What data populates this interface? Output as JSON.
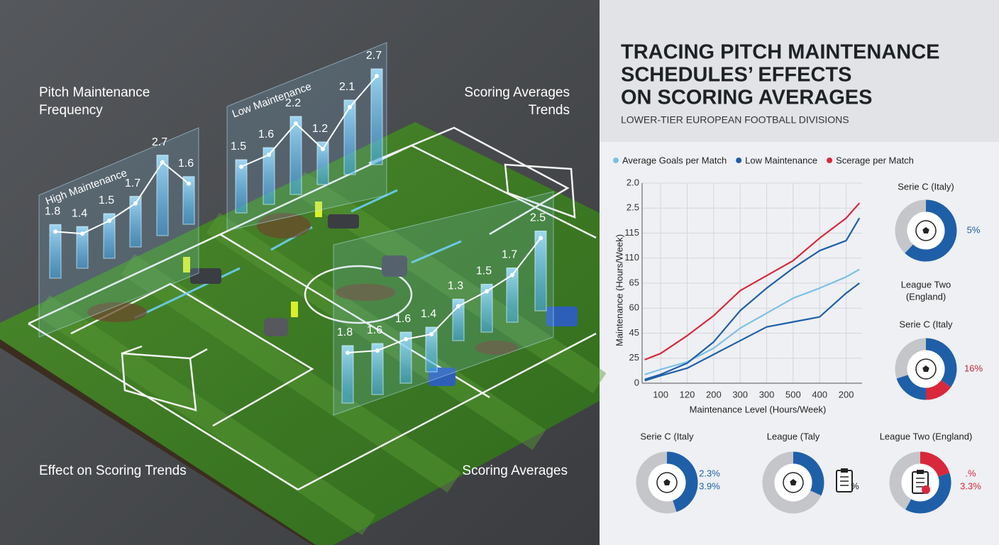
{
  "header": {
    "title": [
      "TRACING PITCH MAINTENANCE",
      "SCHEDULES’ EFFECTS",
      "ON SCORING AVERAGES"
    ],
    "subtitle": "LOWER-TIER EUROPEAN FOOTBALL DIVISIONS"
  },
  "illustration": {
    "labels": [
      [
        "Pitch Maintenance",
        "Frequency"
      ],
      [
        "Scoring Averages",
        "Trends"
      ],
      [
        "Effect on Scoring Trends"
      ],
      [
        "Scoring Averages"
      ]
    ]
  },
  "side_labels": [
    [
      "League Two",
      "(England)"
    ]
  ],
  "chart_data": [
    {
      "type": "line",
      "xlabel": "Maintenance Level (Hours/Week)",
      "ylabel": "Maintenance (Hours/Week)",
      "x": [
        0.4,
        1,
        2,
        3,
        4,
        5,
        6,
        7,
        8,
        8.5
      ],
      "xlim": [
        0.3,
        8.6
      ],
      "xticks": [
        {
          "value": 1,
          "label": "100"
        },
        {
          "value": 2,
          "label": "120"
        },
        {
          "value": 3,
          "label": "200"
        },
        {
          "value": 4,
          "label": "300"
        },
        {
          "value": 5,
          "label": "300"
        },
        {
          "value": 6,
          "label": "500"
        },
        {
          "value": 7,
          "label": "400"
        },
        {
          "value": 8,
          "label": "200"
        }
      ],
      "ylim": [
        0,
        8
      ],
      "yticks": [
        0,
        {
          "value": 1,
          "label": "25"
        },
        {
          "value": 2,
          "label": "45"
        },
        {
          "value": 3,
          "label": "60"
        },
        {
          "value": 4,
          "label": "65"
        },
        {
          "value": 5,
          "label": "110"
        },
        {
          "value": 6,
          "label": "115"
        },
        {
          "value": 7,
          "label": "2.5"
        },
        {
          "value": 8,
          "label": "2.0"
        }
      ],
      "grid": true,
      "series": [
        {
          "name": "Average Goals per Match",
          "color": "#7cc0e6",
          "values": [
            0.35,
            0.55,
            0.85,
            1.4,
            2.2,
            2.8,
            3.4,
            3.8,
            4.25,
            4.55
          ]
        },
        {
          "name": "Low Maintenance",
          "color": "#1f5fa8",
          "values": [
            0.15,
            0.35,
            0.8,
            1.65,
            2.9,
            3.8,
            4.6,
            5.3,
            5.7,
            6.6
          ]
        },
        {
          "name": "Scerage per Match",
          "color": "#d9283c",
          "values": [
            0.94,
            1.19,
            1.9,
            2.7,
            3.7,
            4.3,
            4.9,
            5.8,
            6.6,
            7.2
          ]
        },
        {
          "color": "#1f5fa8",
          "values": [
            0.1,
            0.3,
            0.6,
            1.15,
            1.7,
            2.25,
            2.45,
            2.65,
            3.6,
            4.0
          ]
        }
      ]
    },
    {
      "type": "bar",
      "title": "High Maintenance",
      "values": [
        1.8,
        1.4,
        1.5,
        1.7,
        2.7,
        1.6
      ]
    },
    {
      "type": "bar",
      "title": "Low Maintenance",
      "values": [
        1.5,
        1.6,
        2.2,
        1.2,
        2.1,
        2.7
      ]
    },
    {
      "type": "bar",
      "values": [
        1.8,
        1.6,
        1.6,
        1.4,
        1.3,
        1.5,
        1.7,
        2.5
      ]
    },
    {
      "type": "donut",
      "title": "Serie C (Italy)",
      "values": [
        62,
        38
      ],
      "colors": [
        "#1f5fa8",
        "#c4c6c9"
      ],
      "annotations": [
        "5%"
      ],
      "annotation_colors": [
        "#1f5fa8"
      ]
    },
    {
      "type": "donut",
      "title": "Serie C (Italy",
      "values": [
        35,
        15,
        20,
        30
      ],
      "colors": [
        "#1f5fa8",
        "#d9283c",
        "#1f5fa8",
        "#c4c6c9"
      ],
      "annotations": [
        "16%"
      ],
      "annotation_colors": [
        "#c0283a"
      ]
    },
    {
      "type": "donut",
      "title": "Serie C (Italy",
      "values": [
        45,
        55
      ],
      "colors": [
        "#1f5fa8",
        "#c4c6c9"
      ],
      "annotations": [
        "2.3%",
        "3.9%"
      ],
      "annotation_colors": [
        "#1f5fa8",
        "#1f5fa8"
      ]
    },
    {
      "type": "donut",
      "title": "League (Taly",
      "values": [
        32,
        68
      ],
      "colors": [
        "#1f5fa8",
        "#c4c6c9"
      ],
      "annotations": [
        "%"
      ],
      "annotation_colors": [
        "#222222"
      ]
    },
    {
      "type": "donut",
      "title": "League Two (England)",
      "values": [
        20,
        38,
        42
      ],
      "colors": [
        "#d9283c",
        "#1f5fa8",
        "#c4c6c9"
      ],
      "annotations": [
        ".%",
        "3.3%"
      ],
      "annotation_colors": [
        "#d9283c",
        "#d9283c"
      ]
    }
  ]
}
